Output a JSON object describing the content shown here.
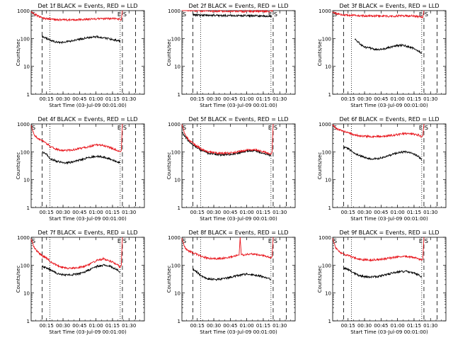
{
  "figure": {
    "xlabel": "Start Time (03-Jul-09 00:01:00)",
    "ylabel": "Counts/sec",
    "xtick_labels": [
      "00:15",
      "00:30",
      "00:45",
      "01:00",
      "01:15",
      "01:30"
    ],
    "ytick_labels": [
      "1",
      "10",
      "100",
      "1000"
    ],
    "marker_labels": [
      "E",
      "S"
    ],
    "colors": {
      "events": "#000000",
      "lld": "#e8141b",
      "axes": "#000000"
    }
  },
  "chart_data": [
    {
      "type": "line",
      "title": "Det 1f BLACK = Events, RED = LLD",
      "xlabel": "Start Time (03-Jul-09 00:01:00)",
      "ylabel": "Counts/sec",
      "x_unit": "minutes after 00:01:00",
      "xlim": [
        0,
        103
      ],
      "ylim": [
        1,
        1000
      ],
      "yscale": "log",
      "xticks": [
        14,
        29,
        44,
        59,
        74,
        89
      ],
      "dashed_lines": [
        10,
        83,
        95
      ],
      "dotted_lines": [
        17,
        81
      ],
      "series": [
        {
          "name": "Events",
          "color": "#000000",
          "x": [
            10,
            14,
            18,
            22,
            26,
            30,
            36,
            42,
            48,
            54,
            60,
            66,
            72,
            78,
            81
          ],
          "y": [
            120,
            100,
            85,
            75,
            72,
            74,
            80,
            90,
            100,
            110,
            115,
            105,
            95,
            85,
            80
          ]
        },
        {
          "name": "LLD",
          "color": "#e8141b",
          "x": [
            0,
            3,
            6,
            9,
            12,
            16,
            20,
            26,
            32,
            38,
            44,
            50,
            56,
            62,
            68,
            74,
            80,
            82,
            83
          ],
          "y": [
            900,
            750,
            650,
            560,
            520,
            500,
            480,
            470,
            465,
            470,
            480,
            490,
            500,
            510,
            520,
            520,
            490,
            470,
            1000
          ]
        }
      ]
    },
    {
      "type": "line",
      "title": "Det 2f BLACK = Events, RED = LLD",
      "xlabel": "Start Time (03-Jul-09 00:01:00)",
      "ylabel": "Counts/sec",
      "x_unit": "minutes after 00:01:00",
      "xlim": [
        0,
        103
      ],
      "ylim": [
        1,
        1000
      ],
      "yscale": "log",
      "xticks": [
        14,
        29,
        44,
        59,
        74,
        89
      ],
      "dashed_lines": [
        10,
        83,
        95
      ],
      "dotted_lines": [
        17,
        81
      ],
      "series": [
        {
          "name": "Events",
          "color": "#000000",
          "x": [
            10,
            16,
            22,
            30,
            40,
            50,
            60,
            70,
            80,
            82
          ],
          "y": [
            700,
            690,
            680,
            670,
            665,
            660,
            655,
            650,
            640,
            620
          ]
        },
        {
          "name": "LLD",
          "color": "#e8141b",
          "x": [
            0,
            2,
            4,
            8,
            16,
            26,
            36,
            46,
            56,
            66,
            76,
            81,
            83
          ],
          "y": [
            1300,
            1100,
            1050,
            1000,
            980,
            970,
            960,
            955,
            950,
            950,
            950,
            950,
            1000
          ]
        }
      ]
    },
    {
      "type": "line",
      "title": "Det 3f BLACK = Events, RED = LLD",
      "xlabel": "Start Time (03-Jul-09 00:01:00)",
      "ylabel": "Counts/sec",
      "x_unit": "minutes after 00:01:00",
      "xlim": [
        0,
        103
      ],
      "ylim": [
        1,
        1000
      ],
      "yscale": "log",
      "xticks": [
        14,
        29,
        44,
        59,
        74,
        89
      ],
      "dashed_lines": [
        10,
        83,
        95
      ],
      "dotted_lines": [
        17,
        81
      ],
      "series": [
        {
          "name": "Events",
          "color": "#000000",
          "x": [
            20,
            24,
            28,
            34,
            40,
            46,
            52,
            58,
            64,
            70,
            76,
            81
          ],
          "y": [
            95,
            70,
            50,
            45,
            40,
            42,
            48,
            55,
            58,
            50,
            40,
            30
          ]
        },
        {
          "name": "LLD",
          "color": "#e8141b",
          "x": [
            0,
            3,
            6,
            10,
            16,
            24,
            32,
            40,
            48,
            56,
            64,
            72,
            80,
            82,
            83
          ],
          "y": [
            900,
            800,
            730,
            700,
            680,
            660,
            650,
            640,
            635,
            640,
            650,
            650,
            600,
            580,
            1000
          ]
        }
      ]
    },
    {
      "type": "line",
      "title": "Det 4f BLACK = Events, RED = LLD",
      "xlabel": "Start Time (03-Jul-09 00:01:00)",
      "ylabel": "Counts/sec",
      "x_unit": "minutes after 00:01:00",
      "xlim": [
        0,
        103
      ],
      "ylim": [
        1,
        1000
      ],
      "yscale": "log",
      "xticks": [
        14,
        29,
        44,
        59,
        74,
        89
      ],
      "dashed_lines": [
        10,
        83,
        95
      ],
      "dotted_lines": [
        17,
        81
      ],
      "series": [
        {
          "name": "Events",
          "color": "#000000",
          "x": [
            10,
            14,
            18,
            24,
            30,
            36,
            42,
            48,
            54,
            60,
            66,
            72,
            78,
            81
          ],
          "y": [
            100,
            80,
            55,
            45,
            40,
            42,
            48,
            55,
            65,
            70,
            65,
            55,
            45,
            40
          ]
        },
        {
          "name": "LLD",
          "color": "#e8141b",
          "x": [
            0,
            3,
            6,
            10,
            14,
            18,
            24,
            30,
            36,
            42,
            48,
            54,
            60,
            66,
            72,
            78,
            81,
            82,
            83
          ],
          "y": [
            900,
            400,
            300,
            250,
            200,
            150,
            120,
            110,
            115,
            125,
            140,
            160,
            180,
            170,
            140,
            115,
            100,
            110,
            1000
          ]
        }
      ]
    },
    {
      "type": "line",
      "title": "Det 5f BLACK = Events, RED = LLD",
      "xlabel": "Start Time (03-Jul-09 00:01:00)",
      "ylabel": "Counts/sec",
      "x_unit": "minutes after 00:01:00",
      "xlim": [
        0,
        103
      ],
      "ylim": [
        1,
        1000
      ],
      "yscale": "log",
      "xticks": [
        14,
        29,
        44,
        59,
        74,
        89
      ],
      "dashed_lines": [
        10,
        83,
        95
      ],
      "dotted_lines": [
        17,
        81
      ],
      "series": [
        {
          "name": "Events",
          "color": "#000000",
          "x": [
            0,
            3,
            6,
            10,
            14,
            18,
            24,
            30,
            36,
            42,
            48,
            54,
            60,
            66,
            72,
            78,
            81
          ],
          "y": [
            500,
            350,
            250,
            180,
            140,
            110,
            90,
            80,
            78,
            80,
            85,
            95,
            110,
            110,
            95,
            80,
            70
          ]
        },
        {
          "name": "LLD",
          "color": "#e8141b",
          "x": [
            0,
            3,
            6,
            10,
            14,
            18,
            24,
            30,
            36,
            42,
            48,
            54,
            60,
            66,
            72,
            78,
            81,
            82,
            83
          ],
          "y": [
            900,
            400,
            280,
            200,
            160,
            125,
            100,
            90,
            88,
            90,
            95,
            105,
            120,
            120,
            105,
            90,
            80,
            100,
            1000
          ]
        }
      ]
    },
    {
      "type": "line",
      "title": "Det 6f BLACK = Events, RED = LLD",
      "xlabel": "Start Time (03-Jul-09 00:01:00)",
      "ylabel": "Counts/sec",
      "x_unit": "minutes after 00:01:00",
      "xlim": [
        0,
        103
      ],
      "ylim": [
        1,
        1000
      ],
      "yscale": "log",
      "xticks": [
        14,
        29,
        44,
        59,
        74,
        89
      ],
      "dashed_lines": [
        10,
        83,
        95
      ],
      "dotted_lines": [
        17,
        81
      ],
      "series": [
        {
          "name": "Events",
          "color": "#000000",
          "x": [
            10,
            14,
            18,
            24,
            30,
            36,
            42,
            48,
            54,
            60,
            66,
            72,
            78,
            81
          ],
          "y": [
            150,
            130,
            100,
            75,
            60,
            55,
            58,
            65,
            80,
            95,
            100,
            90,
            70,
            50
          ]
        },
        {
          "name": "LLD",
          "color": "#e8141b",
          "x": [
            0,
            3,
            6,
            10,
            14,
            18,
            24,
            30,
            36,
            42,
            48,
            54,
            60,
            66,
            72,
            78,
            81,
            82,
            83
          ],
          "y": [
            900,
            700,
            600,
            550,
            480,
            420,
            380,
            360,
            355,
            360,
            370,
            390,
            420,
            450,
            440,
            400,
            350,
            380,
            1000
          ]
        }
      ]
    },
    {
      "type": "line",
      "title": "Det 7f BLACK = Events, RED = LLD",
      "xlabel": "Start Time (03-Jul-09 00:01:00)",
      "ylabel": "Counts/sec",
      "x_unit": "minutes after 00:01:00",
      "xlim": [
        0,
        103
      ],
      "ylim": [
        1,
        1000
      ],
      "yscale": "log",
      "xticks": [
        14,
        29,
        44,
        59,
        74,
        89
      ],
      "dashed_lines": [
        10,
        83,
        95
      ],
      "dotted_lines": [
        17,
        81
      ],
      "series": [
        {
          "name": "Events",
          "color": "#000000",
          "x": [
            10,
            14,
            18,
            24,
            30,
            36,
            42,
            48,
            54,
            60,
            66,
            72,
            78,
            81
          ],
          "y": [
            90,
            80,
            65,
            50,
            45,
            45,
            48,
            55,
            70,
            90,
            100,
            90,
            70,
            55
          ]
        },
        {
          "name": "LLD",
          "color": "#e8141b",
          "x": [
            0,
            3,
            6,
            10,
            14,
            18,
            24,
            30,
            36,
            42,
            48,
            54,
            60,
            66,
            72,
            78,
            81,
            82,
            83
          ],
          "y": [
            900,
            400,
            300,
            220,
            180,
            130,
            95,
            80,
            78,
            80,
            90,
            110,
            150,
            170,
            140,
            105,
            85,
            100,
            1000
          ]
        }
      ]
    },
    {
      "type": "line",
      "title": "Det 8f BLACK = Events, RED = LLD",
      "xlabel": "Start Time (03-Jul-09 00:01:00)",
      "ylabel": "Counts/sec",
      "x_unit": "minutes after 00:01:00",
      "xlim": [
        0,
        103
      ],
      "ylim": [
        1,
        1000
      ],
      "yscale": "log",
      "xticks": [
        14,
        29,
        44,
        59,
        74,
        89
      ],
      "dashed_lines": [
        10,
        83,
        95
      ],
      "dotted_lines": [
        17,
        81
      ],
      "series": [
        {
          "name": "Events",
          "color": "#000000",
          "x": [
            10,
            14,
            18,
            24,
            30,
            36,
            42,
            48,
            54,
            60,
            66,
            72,
            78,
            81
          ],
          "y": [
            70,
            55,
            40,
            32,
            30,
            32,
            35,
            40,
            45,
            48,
            45,
            40,
            35,
            30
          ]
        },
        {
          "name": "LLD",
          "color": "#e8141b",
          "x": [
            0,
            3,
            6,
            10,
            14,
            18,
            24,
            30,
            36,
            42,
            48,
            52,
            53,
            54,
            60,
            66,
            72,
            78,
            81,
            82,
            83
          ],
          "y": [
            900,
            400,
            320,
            280,
            240,
            200,
            180,
            170,
            175,
            190,
            210,
            230,
            1000,
            230,
            250,
            250,
            230,
            200,
            180,
            200,
            1000
          ]
        }
      ]
    },
    {
      "type": "line",
      "title": "Det 9f BLACK = Events, RED = LLD",
      "xlabel": "Start Time (03-Jul-09 00:01:00)",
      "ylabel": "Counts/sec",
      "x_unit": "minutes after 00:01:00",
      "xlim": [
        0,
        103
      ],
      "ylim": [
        1,
        1000
      ],
      "yscale": "log",
      "xticks": [
        14,
        29,
        44,
        59,
        74,
        89
      ],
      "dashed_lines": [
        10,
        83,
        95
      ],
      "dotted_lines": [
        17,
        81
      ],
      "series": [
        {
          "name": "Events",
          "color": "#000000",
          "x": [
            10,
            14,
            18,
            24,
            30,
            36,
            42,
            48,
            54,
            60,
            66,
            72,
            78,
            81
          ],
          "y": [
            80,
            70,
            55,
            42,
            38,
            38,
            40,
            45,
            52,
            58,
            60,
            55,
            45,
            38
          ]
        },
        {
          "name": "LLD",
          "color": "#e8141b",
          "x": [
            0,
            3,
            6,
            10,
            14,
            18,
            24,
            30,
            36,
            42,
            48,
            54,
            60,
            66,
            72,
            78,
            81,
            82,
            83
          ],
          "y": [
            900,
            400,
            300,
            250,
            220,
            190,
            165,
            155,
            155,
            160,
            170,
            185,
            200,
            210,
            195,
            170,
            150,
            160,
            1000
          ]
        }
      ]
    }
  ]
}
